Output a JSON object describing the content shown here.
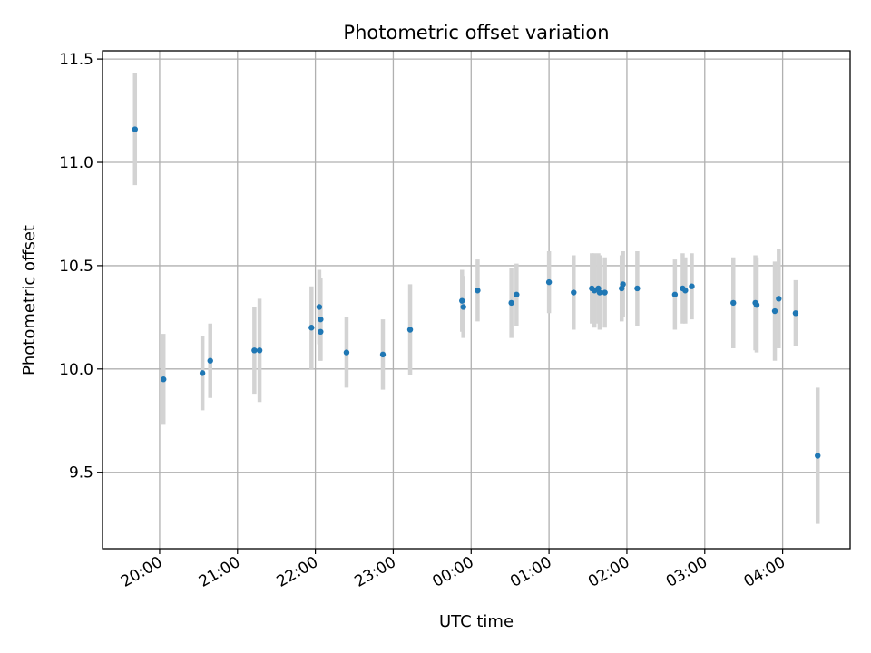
{
  "chart_data": {
    "type": "scatter",
    "title": "Photometric offset variation",
    "xlabel": "UTC time",
    "ylabel": "Photometric offset",
    "x_axis_type": "time",
    "x_ticks": [
      "20:00",
      "21:00",
      "22:00",
      "23:00",
      "00:00",
      "01:00",
      "02:00",
      "03:00",
      "04:00"
    ],
    "y_ticks": [
      "9.5",
      "10.0",
      "10.5",
      "11.0",
      "11.5"
    ],
    "xlim": [
      "19:16",
      "04:52"
    ],
    "ylim": [
      9.13,
      11.54
    ],
    "grid": true,
    "colors": {
      "points": "#1f77b4",
      "errorbars": "#d3d3d3",
      "grid": "#b0b0b0"
    },
    "series": [
      {
        "points": [
          {
            "x": "19:41",
            "y": 11.16,
            "yerr": 0.27
          },
          {
            "x": "20:03",
            "y": 9.95,
            "yerr": 0.22
          },
          {
            "x": "20:33",
            "y": 9.98,
            "yerr": 0.18
          },
          {
            "x": "20:39",
            "y": 10.04,
            "yerr": 0.18
          },
          {
            "x": "21:13",
            "y": 10.09,
            "yerr": 0.21
          },
          {
            "x": "21:17",
            "y": 10.09,
            "yerr": 0.25
          },
          {
            "x": "21:57",
            "y": 10.2,
            "yerr": 0.2
          },
          {
            "x": "22:03",
            "y": 10.3,
            "yerr": 0.18
          },
          {
            "x": "22:04",
            "y": 10.24,
            "yerr": 0.2
          },
          {
            "x": "22:04",
            "y": 10.18,
            "yerr": 0.14
          },
          {
            "x": "22:24",
            "y": 10.08,
            "yerr": 0.17
          },
          {
            "x": "22:52",
            "y": 10.07,
            "yerr": 0.17
          },
          {
            "x": "23:13",
            "y": 10.19,
            "yerr": 0.22
          },
          {
            "x": "23:53",
            "y": 10.33,
            "yerr": 0.15
          },
          {
            "x": "23:54",
            "y": 10.3,
            "yerr": 0.15
          },
          {
            "x": "00:05",
            "y": 10.38,
            "yerr": 0.15
          },
          {
            "x": "00:31",
            "y": 10.32,
            "yerr": 0.17
          },
          {
            "x": "00:35",
            "y": 10.36,
            "yerr": 0.15
          },
          {
            "x": "01:00",
            "y": 10.42,
            "yerr": 0.15
          },
          {
            "x": "01:19",
            "y": 10.37,
            "yerr": 0.18
          },
          {
            "x": "01:33",
            "y": 10.39,
            "yerr": 0.17
          },
          {
            "x": "01:35",
            "y": 10.38,
            "yerr": 0.18
          },
          {
            "x": "01:38",
            "y": 10.39,
            "yerr": 0.17
          },
          {
            "x": "01:39",
            "y": 10.37,
            "yerr": 0.18
          },
          {
            "x": "01:43",
            "y": 10.37,
            "yerr": 0.17
          },
          {
            "x": "01:56",
            "y": 10.39,
            "yerr": 0.16
          },
          {
            "x": "01:57",
            "y": 10.41,
            "yerr": 0.16
          },
          {
            "x": "02:08",
            "y": 10.39,
            "yerr": 0.18
          },
          {
            "x": "02:37",
            "y": 10.36,
            "yerr": 0.17
          },
          {
            "x": "02:43",
            "y": 10.39,
            "yerr": 0.17
          },
          {
            "x": "02:45",
            "y": 10.38,
            "yerr": 0.16
          },
          {
            "x": "02:50",
            "y": 10.4,
            "yerr": 0.16
          },
          {
            "x": "03:22",
            "y": 10.32,
            "yerr": 0.22
          },
          {
            "x": "03:39",
            "y": 10.32,
            "yerr": 0.23
          },
          {
            "x": "03:40",
            "y": 10.31,
            "yerr": 0.23
          },
          {
            "x": "03:54",
            "y": 10.28,
            "yerr": 0.24
          },
          {
            "x": "03:57",
            "y": 10.34,
            "yerr": 0.24
          },
          {
            "x": "04:10",
            "y": 10.27,
            "yerr": 0.16
          },
          {
            "x": "04:27",
            "y": 9.58,
            "yerr": 0.33
          }
        ]
      }
    ]
  }
}
